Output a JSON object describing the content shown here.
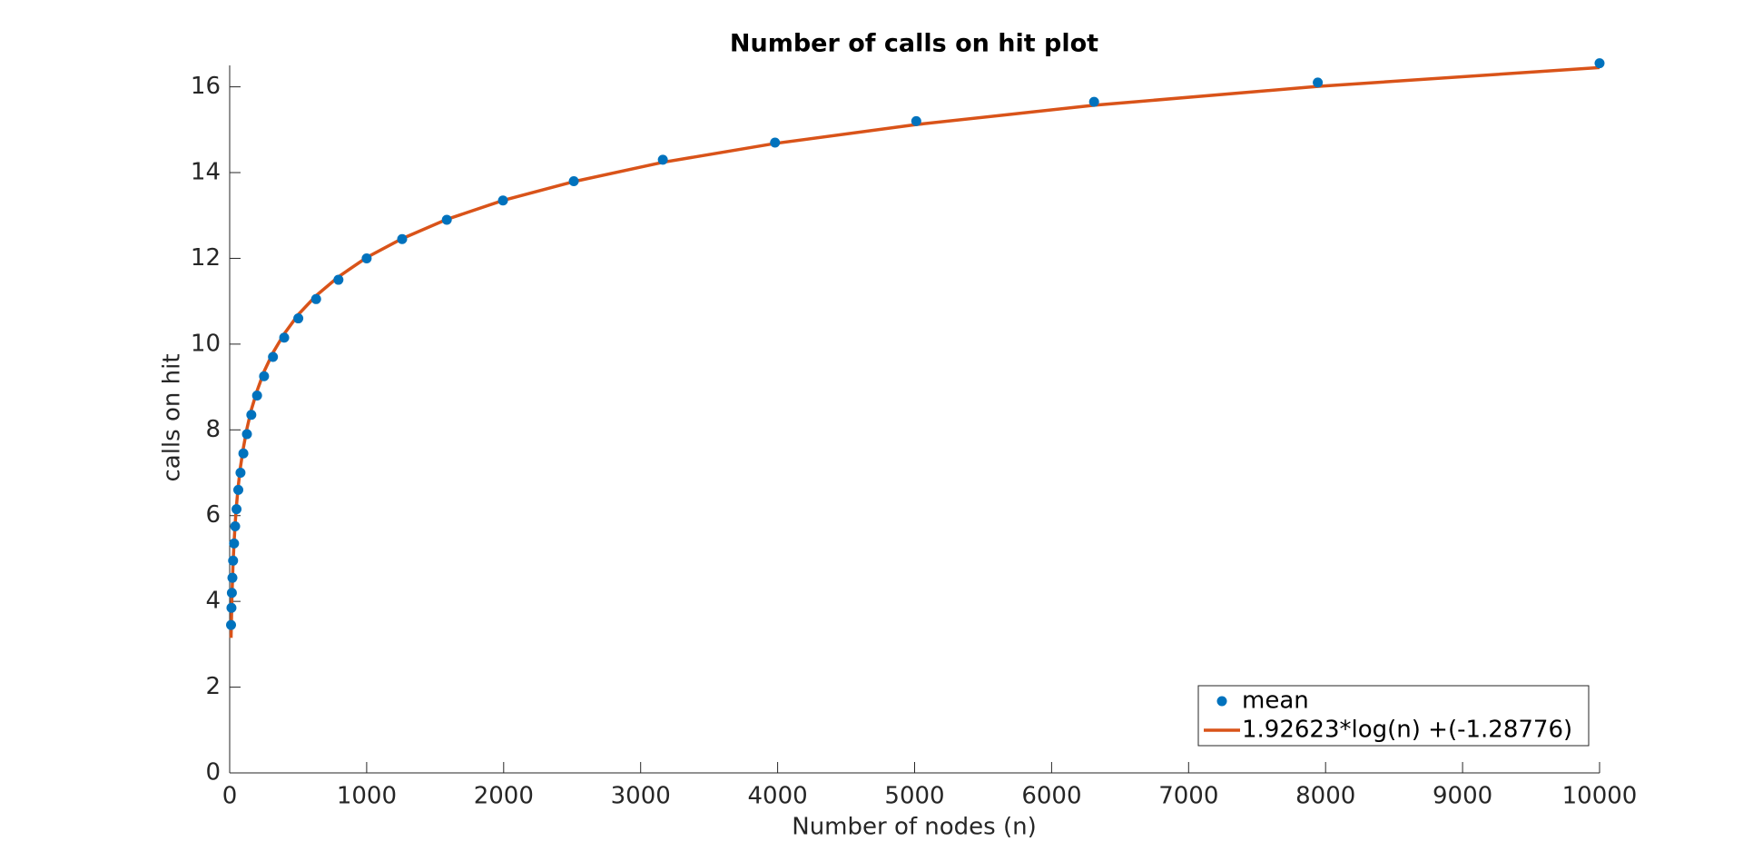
{
  "chart_data": {
    "type": "scatter",
    "title": "Number of calls on hit plot",
    "xlabel": "Number of nodes (n)",
    "ylabel": "calls on hit",
    "xlim": [
      0,
      10000
    ],
    "ylim": [
      0,
      16.5
    ],
    "xticks": [
      0,
      1000,
      2000,
      3000,
      4000,
      5000,
      6000,
      7000,
      8000,
      9000,
      10000
    ],
    "yticks": [
      0,
      2,
      4,
      6,
      8,
      10,
      12,
      14,
      16
    ],
    "legend": "lower right",
    "series": [
      {
        "name": "mean",
        "color": "#0072bd",
        "mode": "markers",
        "x": [
          10,
          13,
          16,
          20,
          25,
          32,
          40,
          50,
          63,
          79,
          100,
          126,
          158,
          200,
          251,
          316,
          398,
          501,
          631,
          794,
          1000,
          1259,
          1585,
          1995,
          2512,
          3162,
          3981,
          5012,
          6310,
          7943,
          10000
        ],
        "values": [
          3.45,
          3.85,
          4.2,
          4.55,
          4.95,
          5.35,
          5.75,
          6.15,
          6.6,
          7.0,
          7.45,
          7.9,
          8.35,
          8.8,
          9.25,
          9.7,
          10.15,
          10.6,
          11.05,
          11.5,
          12.0,
          12.45,
          12.9,
          13.35,
          13.8,
          14.3,
          14.7,
          15.2,
          15.65,
          16.1,
          16.55
        ]
      },
      {
        "name": "1.92623*log(n) +(-1.28776)",
        "color": "#d95319",
        "mode": "line",
        "x": [
          10,
          13,
          16,
          20,
          25,
          32,
          40,
          50,
          63,
          79,
          100,
          126,
          158,
          200,
          251,
          316,
          398,
          501,
          631,
          794,
          1000,
          1259,
          1585,
          1995,
          2512,
          3162,
          3981,
          5012,
          6310,
          7943,
          10000
        ],
        "values": [
          3.15,
          3.59,
          4.04,
          4.48,
          4.92,
          5.37,
          5.81,
          6.25,
          6.7,
          7.14,
          7.58,
          8.03,
          8.47,
          8.91,
          9.36,
          9.8,
          10.24,
          10.69,
          11.13,
          11.57,
          12.02,
          12.46,
          12.91,
          13.35,
          13.79,
          14.24,
          14.68,
          15.12,
          15.57,
          16.01,
          16.45
        ]
      }
    ]
  }
}
